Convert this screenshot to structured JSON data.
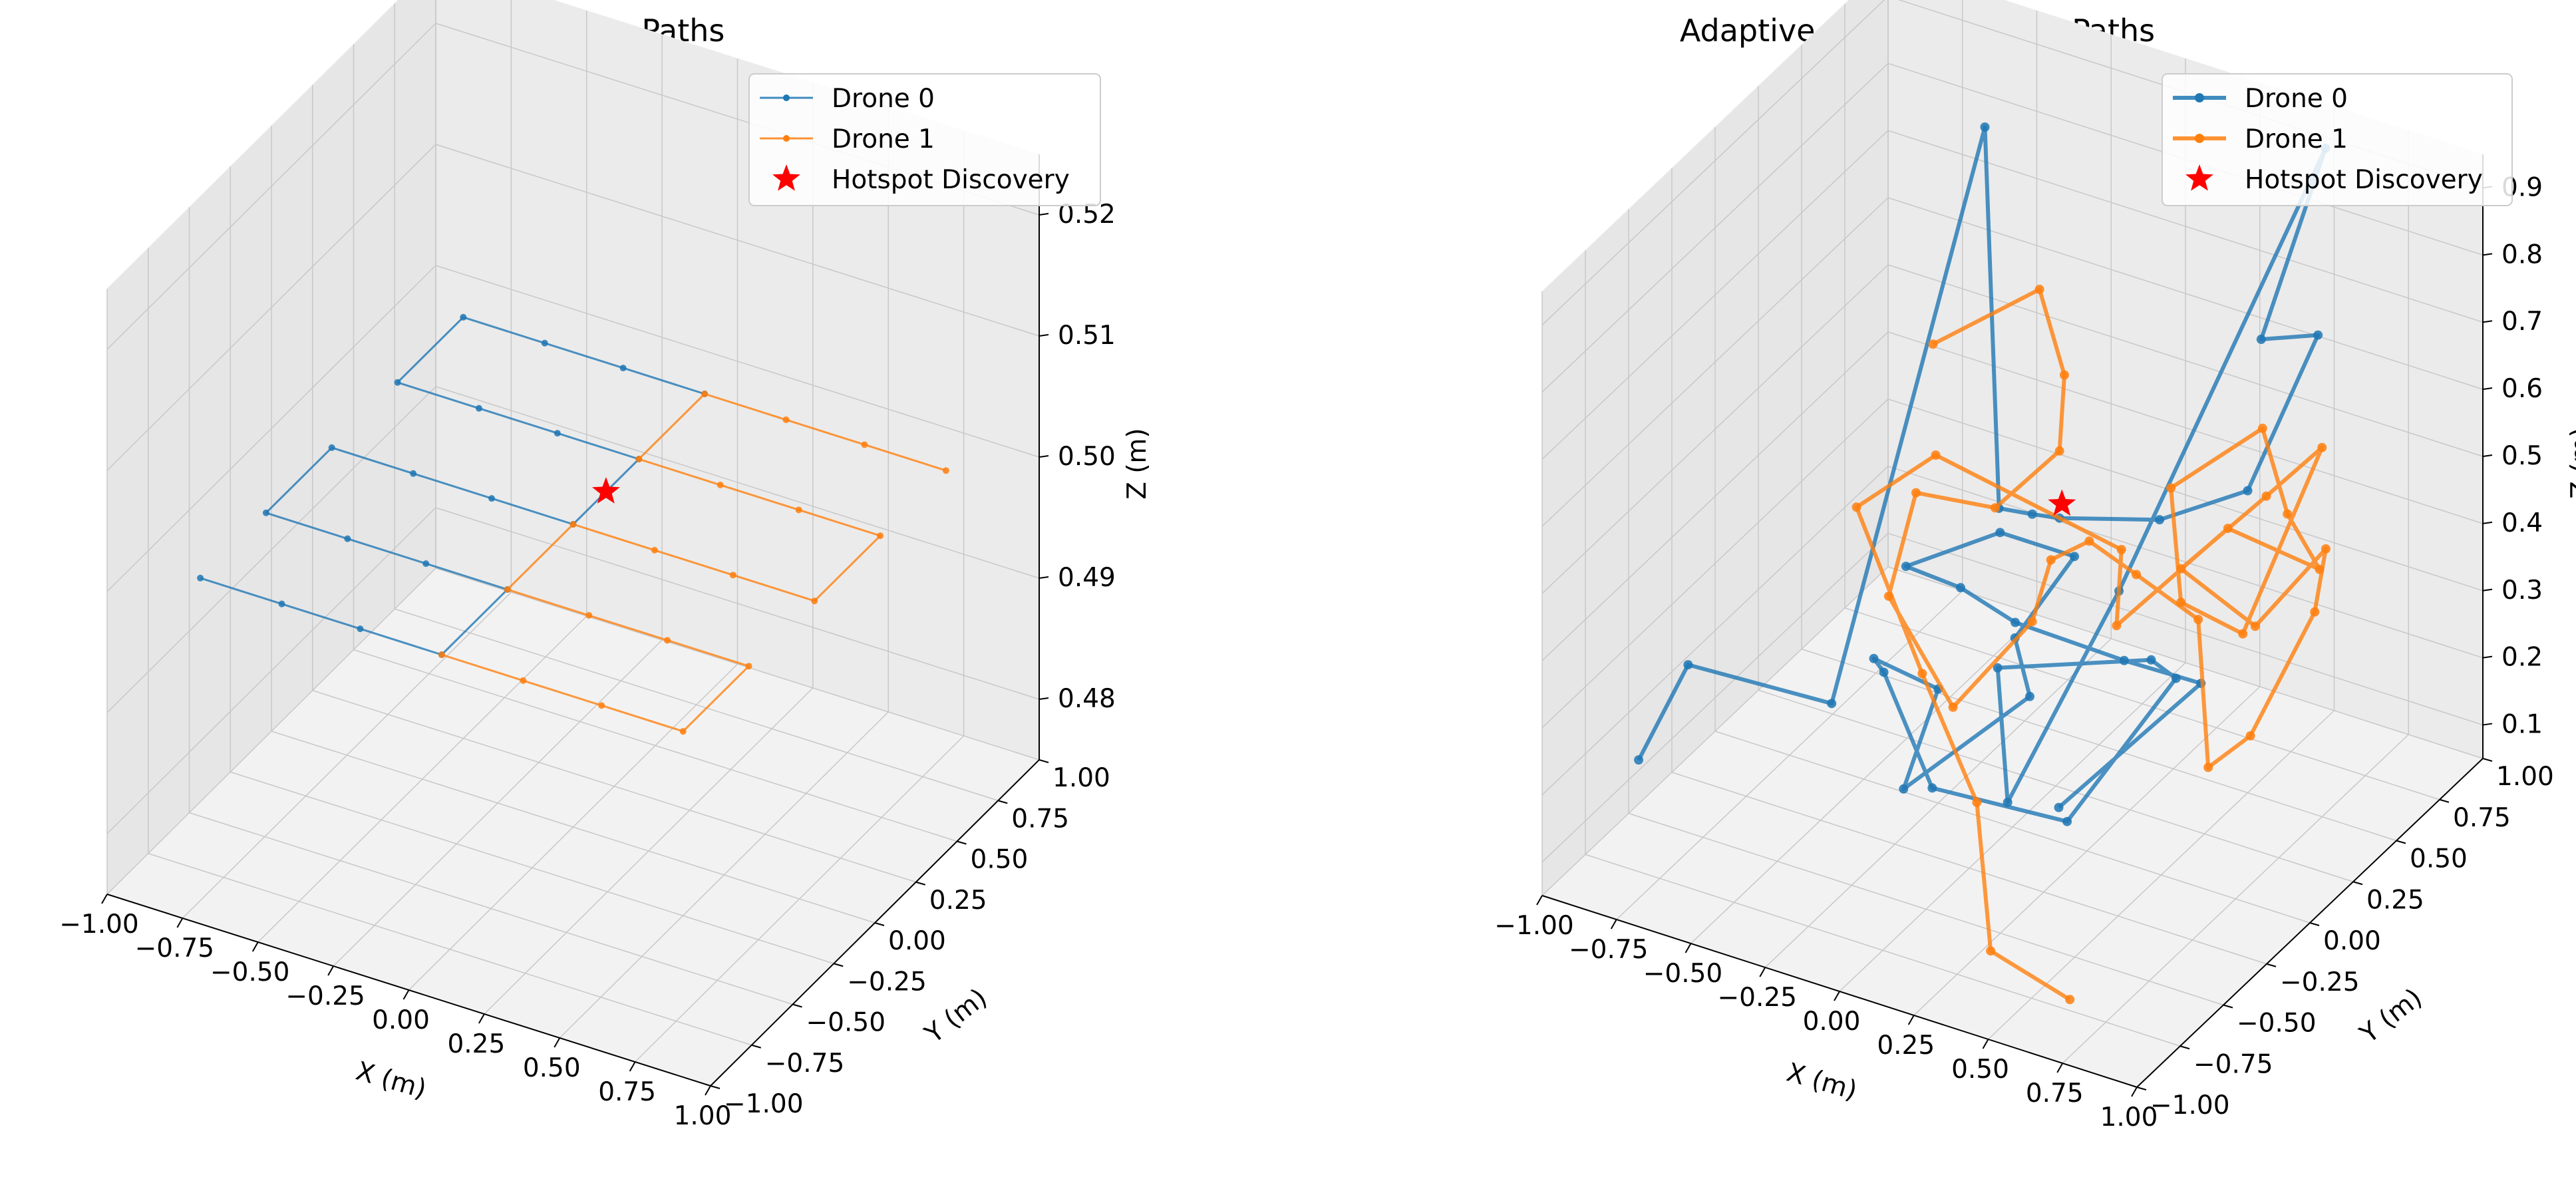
{
  "chart_data": [
    {
      "type": "line",
      "projection": "3d",
      "title": "Zigzag Pattern Paths",
      "xlabel": "X (m)",
      "ylabel": "Y (m)",
      "zlabel": "Z (m)",
      "xlim": [
        -1.0,
        1.0
      ],
      "ylim": [
        -1.0,
        1.0
      ],
      "zlim": [
        0.475,
        0.525
      ],
      "xticks": [
        "−1.00",
        "−0.75",
        "−0.50",
        "−0.25",
        "0.00",
        "0.25",
        "0.50",
        "0.75",
        "1.00"
      ],
      "yticks": [
        "−1.00",
        "−0.75",
        "−0.50",
        "−0.25",
        "0.00",
        "0.25",
        "0.50",
        "0.75",
        "1.00"
      ],
      "zticks": [
        "0.48",
        "0.49",
        "0.50",
        "0.51",
        "0.52"
      ],
      "grid": true,
      "legend": "top-right",
      "series": [
        {
          "name": "Drone 0",
          "color": "#1f77b4",
          "style": "thin line with small markers",
          "x": [
            -0.8,
            -0.53,
            -0.27,
            0.0,
            0.0,
            -0.27,
            -0.53,
            -0.8,
            -0.8,
            -0.53,
            -0.27,
            0.0,
            0.0,
            -0.27,
            -0.53,
            -0.8,
            -0.8,
            -0.53,
            -0.27,
            0.0
          ],
          "y": [
            -0.8,
            -0.8,
            -0.8,
            -0.8,
            -0.4,
            -0.4,
            -0.4,
            -0.4,
            0.0,
            0.0,
            0.0,
            0.0,
            0.4,
            0.4,
            0.4,
            0.4,
            0.8,
            0.8,
            0.8,
            0.8
          ],
          "z": [
            0.5,
            0.5,
            0.5,
            0.5,
            0.5,
            0.5,
            0.5,
            0.5,
            0.5,
            0.5,
            0.5,
            0.5,
            0.5,
            0.5,
            0.5,
            0.5,
            0.5,
            0.5,
            0.5,
            0.5
          ]
        },
        {
          "name": "Drone 1",
          "color": "#ff7f0e",
          "style": "thin line with small markers",
          "x": [
            0.0,
            0.27,
            0.53,
            0.8,
            0.8,
            0.53,
            0.27,
            0.0,
            0.0,
            0.27,
            0.53,
            0.8,
            0.8,
            0.53,
            0.27,
            0.0,
            0.0,
            0.27,
            0.53,
            0.8
          ],
          "y": [
            -0.8,
            -0.8,
            -0.8,
            -0.8,
            -0.4,
            -0.4,
            -0.4,
            -0.4,
            0.0,
            0.0,
            0.0,
            0.0,
            0.4,
            0.4,
            0.4,
            0.4,
            0.8,
            0.8,
            0.8,
            0.8
          ],
          "z": [
            0.5,
            0.5,
            0.5,
            0.5,
            0.5,
            0.5,
            0.5,
            0.5,
            0.5,
            0.5,
            0.5,
            0.5,
            0.5,
            0.5,
            0.5,
            0.5,
            0.5,
            0.5,
            0.5,
            0.5
          ]
        }
      ],
      "hotspots": [
        {
          "name": "Hotspot Discovery",
          "color": "#ff0000",
          "marker": "star",
          "x": 0.0,
          "y": 0.2,
          "z": 0.5
        }
      ]
    },
    {
      "type": "line",
      "projection": "3d",
      "title": "Adaptive Gradient-Based Paths",
      "xlabel": "X (m)",
      "ylabel": "Y (m)",
      "zlabel": "Z (m)",
      "xlim": [
        -1.0,
        1.0
      ],
      "ylim": [
        -1.0,
        1.0
      ],
      "zlim": [
        0.05,
        0.95
      ],
      "xticks": [
        "−1.00",
        "−0.75",
        "−0.50",
        "−0.25",
        "0.00",
        "0.25",
        "0.50",
        "0.75",
        "1.00"
      ],
      "yticks": [
        "−1.00",
        "−0.75",
        "−0.50",
        "−0.25",
        "0.00",
        "0.25",
        "0.50",
        "0.75",
        "1.00"
      ],
      "zticks": [
        "0.1",
        "0.2",
        "0.3",
        "0.4",
        "0.5",
        "0.6",
        "0.7",
        "0.8",
        "0.9"
      ],
      "grid": true,
      "legend": "top-right",
      "series": [
        {
          "name": "Drone 0",
          "color": "#1f77b4",
          "style": "thick line with markers",
          "x": [
            -0.85,
            -0.8,
            -0.55,
            -0.5,
            -0.22,
            -0.05,
            0.1,
            0.32,
            0.5,
            0.62,
            0.4,
            0.5,
            0.3,
            0.1,
            -0.05,
            0.35,
            0.55,
            0.3,
            0.05,
            -0.2,
            -0.35,
            -0.25,
            -0.25,
            0.0,
            -0.05,
            0.15,
            -0.1,
            -0.3,
            0.0,
            0.3,
            0.55,
            0.75,
            0.65
          ],
          "y": [
            -0.7,
            -0.5,
            -0.1,
            0.7,
            0.3,
            0.2,
            0.1,
            0.3,
            0.5,
            0.7,
            0.75,
            0.95,
            0.1,
            -0.2,
            0.0,
            0.2,
            0.0,
            -0.2,
            -0.55,
            -0.4,
            -0.2,
            0.0,
            -0.2,
            0.1,
            0.1,
            0.1,
            0.1,
            -0.1,
            -0.3,
            -0.5,
            -0.3,
            -0.2,
            -0.85
          ],
          "z": [
            0.2,
            0.3,
            0.18,
            0.85,
            0.42,
            0.46,
            0.5,
            0.48,
            0.5,
            0.7,
            0.65,
            0.9,
            0.42,
            0.15,
            0.28,
            0.3,
            0.35,
            0.15,
            0.25,
            0.35,
            0.3,
            0.22,
            0.12,
            0.22,
            0.3,
            0.45,
            0.45,
            0.42,
            0.48,
            0.52,
            0.45,
            0.42,
            0.38
          ]
        },
        {
          "name": "Drone 1",
          "color": "#ff7f0e",
          "style": "thick line with markers",
          "x": [
            0.6,
            0.45,
            0.2,
            -0.1,
            -0.35,
            -0.2,
            0.25,
            0.35,
            0.55,
            0.8,
            0.75,
            0.55,
            0.3,
            0.45,
            0.6,
            0.75,
            0.65,
            0.45,
            0.7,
            0.85,
            0.9,
            0.8,
            0.6,
            0.45,
            0.3,
            0.2,
            0.1,
            -0.05,
            -0.2,
            -0.3,
            -0.15,
            0.0,
            0.1,
            0.0,
            -0.2,
            -0.5
          ],
          "y": [
            -0.7,
            -0.9,
            -0.55,
            -0.35,
            -0.3,
            -0.1,
            0.2,
            0.0,
            0.3,
            0.4,
            0.3,
            0.5,
            0.4,
            0.2,
            0.3,
            0.5,
            0.35,
            0.2,
            0.2,
            0.35,
            0.2,
            0.0,
            0.1,
            0.3,
            0.2,
            0.1,
            0.05,
            0.2,
            0.0,
            -0.2,
            -0.3,
            -0.1,
            0.1,
            0.3,
            0.5,
            0.4
          ],
          "z": [
            0.05,
            0.15,
            0.25,
            0.35,
            0.55,
            0.6,
            0.45,
            0.4,
            0.5,
            0.45,
            0.55,
            0.6,
            0.5,
            0.4,
            0.35,
            0.6,
            0.55,
            0.45,
            0.4,
            0.5,
            0.45,
            0.3,
            0.2,
            0.35,
            0.42,
            0.48,
            0.45,
            0.3,
            0.2,
            0.4,
            0.6,
            0.55,
            0.6,
            0.65,
            0.7,
            0.6
          ]
        }
      ],
      "hotspots": [
        {
          "name": "Hotspot Discovery",
          "color": "#ff0000",
          "marker": "star",
          "x": -0.02,
          "y": 0.32,
          "z": 0.45
        }
      ]
    }
  ]
}
